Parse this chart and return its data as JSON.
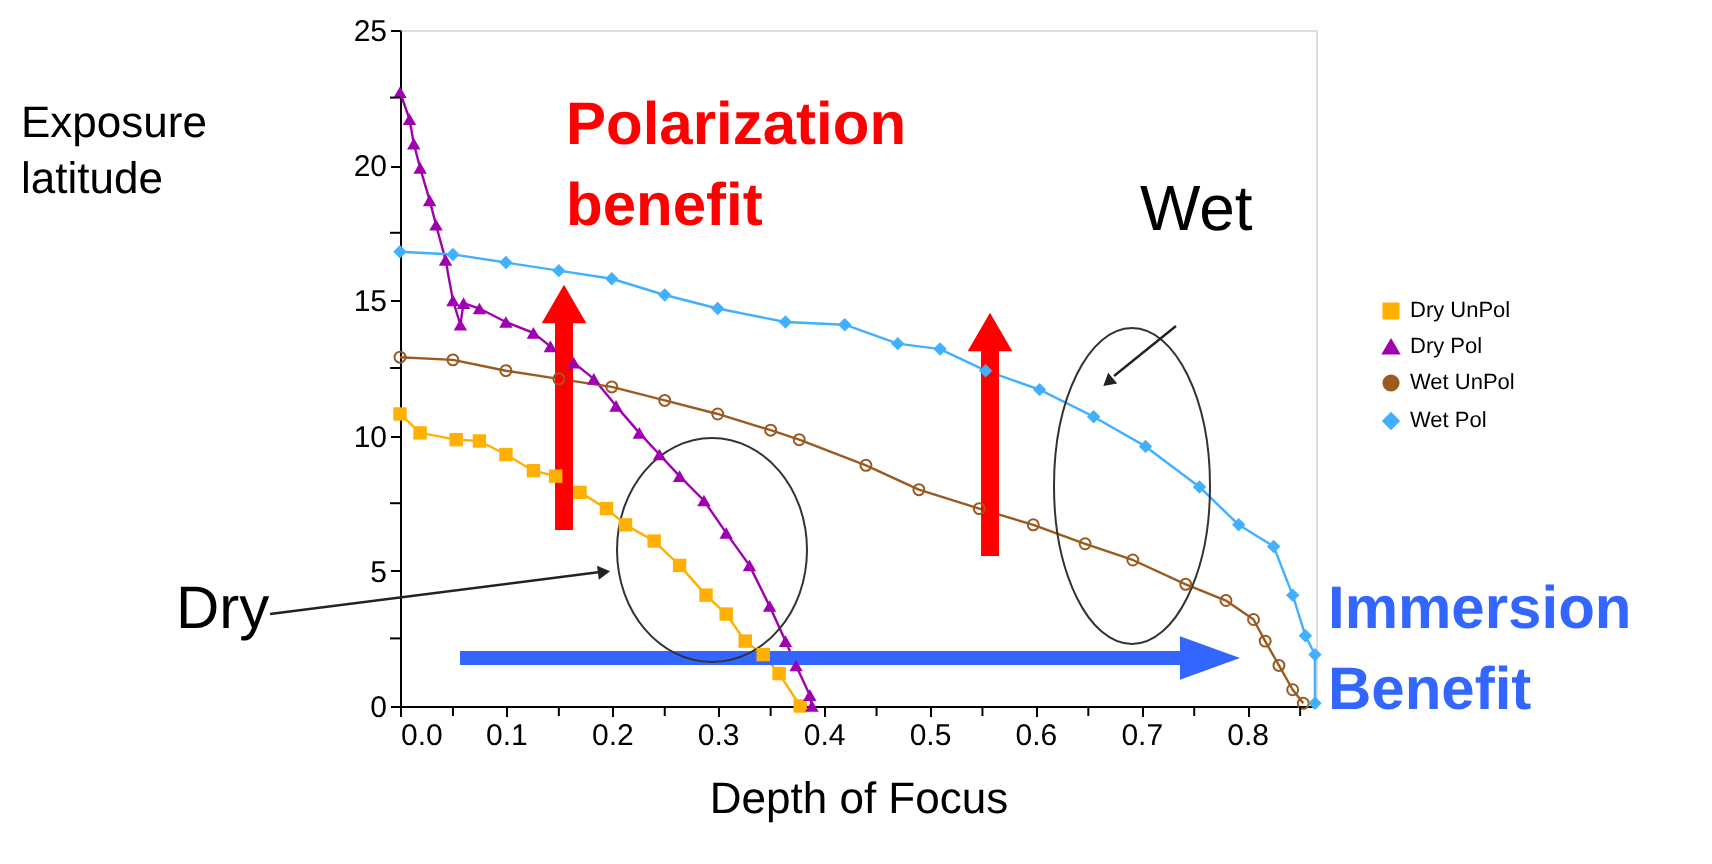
{
  "chart_data": {
    "type": "line",
    "xlabel": "Depth of Focus",
    "ylabel": "Exposure latitude",
    "xlim": [
      0,
      0.865
    ],
    "ylim": [
      0,
      25
    ],
    "xticks": [
      {
        "value": 0,
        "label": "0.0"
      },
      {
        "value": 0.05,
        "label": null
      },
      {
        "value": 0.1,
        "label": "0.1"
      },
      {
        "value": 0.15,
        "label": null
      },
      {
        "value": 0.2,
        "label": "0.2"
      },
      {
        "value": 0.25,
        "label": null
      },
      {
        "value": 0.3,
        "label": "0.3"
      },
      {
        "value": 0.35,
        "label": null
      },
      {
        "value": 0.4,
        "label": "0.4"
      },
      {
        "value": 0.45,
        "label": null
      },
      {
        "value": 0.5,
        "label": "0.5"
      },
      {
        "value": 0.55,
        "label": null
      },
      {
        "value": 0.6,
        "label": "0.6"
      },
      {
        "value": 0.65,
        "label": null
      },
      {
        "value": 0.7,
        "label": "0.7"
      },
      {
        "value": 0.75,
        "label": null
      },
      {
        "value": 0.8,
        "label": "0.8"
      },
      {
        "value": 0.85,
        "label": null
      }
    ],
    "yticks": [
      0,
      {
        "value": 2.5,
        "label": null
      },
      5,
      {
        "value": 7.5,
        "label": null
      },
      10,
      {
        "value": 12.5,
        "label": null
      },
      15,
      {
        "value": 17.5,
        "label": null
      },
      20,
      {
        "value": 22.5,
        "label": null
      },
      25
    ],
    "grid": false,
    "legend": "right",
    "annotations": [
      "Polarization benefit",
      "Wet",
      "Dry",
      "Immersion Benefit"
    ],
    "series": [
      {
        "name": "Dry UnPol",
        "color": "#ffb000",
        "marker": "square",
        "x": [
          0,
          0.019,
          0.053,
          0.075,
          0.1,
          0.126,
          0.147,
          0.17,
          0.195,
          0.213,
          0.24,
          0.264,
          0.289,
          0.308,
          0.326,
          0.343,
          0.358,
          0.378
        ],
        "values": [
          10.8,
          10.1,
          9.85,
          9.8,
          9.3,
          8.7,
          8.5,
          7.9,
          7.3,
          6.7,
          6.1,
          5.2,
          4.1,
          3.4,
          2.4,
          1.9,
          1.2,
          0
        ]
      },
      {
        "name": "Dry Pol",
        "color": "#a000b0",
        "marker": "triangle",
        "x": [
          0,
          0.009,
          0.013,
          0.019,
          0.028,
          0.034,
          0.043,
          0.05,
          0.057,
          0.06,
          0.075,
          0.1,
          0.126,
          0.142,
          0.164,
          0.183,
          0.204,
          0.226,
          0.245,
          0.264,
          0.287,
          0.308,
          0.33,
          0.349,
          0.364,
          0.374,
          0.387,
          0.389
        ],
        "values": [
          22.7,
          21.7,
          20.8,
          19.9,
          18.7,
          17.8,
          16.5,
          15.0,
          14.1,
          14.9,
          14.7,
          14.2,
          13.8,
          13.3,
          12.7,
          12.1,
          11.1,
          10.1,
          9.3,
          8.5,
          7.6,
          6.4,
          5.2,
          3.7,
          2.4,
          1.5,
          0.4,
          0
        ]
      },
      {
        "name": "Wet UnPol",
        "color": "#9a5a20",
        "marker": "circle",
        "x": [
          0,
          0.05,
          0.1,
          0.15,
          0.2,
          0.25,
          0.3,
          0.35,
          0.377,
          0.44,
          0.49,
          0.547,
          0.598,
          0.647,
          0.692,
          0.742,
          0.78,
          0.806,
          0.817,
          0.83,
          0.843,
          0.853
        ],
        "values": [
          12.9,
          12.8,
          12.4,
          12.1,
          11.8,
          11.3,
          10.8,
          10.2,
          9.85,
          8.9,
          8.0,
          7.3,
          6.7,
          6.0,
          5.4,
          4.5,
          3.9,
          3.2,
          2.4,
          1.5,
          0.6,
          0.1
        ]
      },
      {
        "name": "Wet Pol",
        "color": "#40b0ff",
        "marker": "diamond",
        "x": [
          0,
          0.05,
          0.1,
          0.15,
          0.2,
          0.25,
          0.3,
          0.364,
          0.42,
          0.47,
          0.51,
          0.553,
          0.604,
          0.655,
          0.704,
          0.755,
          0.792,
          0.825,
          0.843,
          0.855,
          0.864,
          0.864
        ],
        "values": [
          16.8,
          16.7,
          16.4,
          16.1,
          15.8,
          15.2,
          14.7,
          14.2,
          14.1,
          13.4,
          13.2,
          12.4,
          11.7,
          10.7,
          9.6,
          8.1,
          6.7,
          5.9,
          4.1,
          2.6,
          1.9,
          0.1
        ]
      }
    ]
  }
}
